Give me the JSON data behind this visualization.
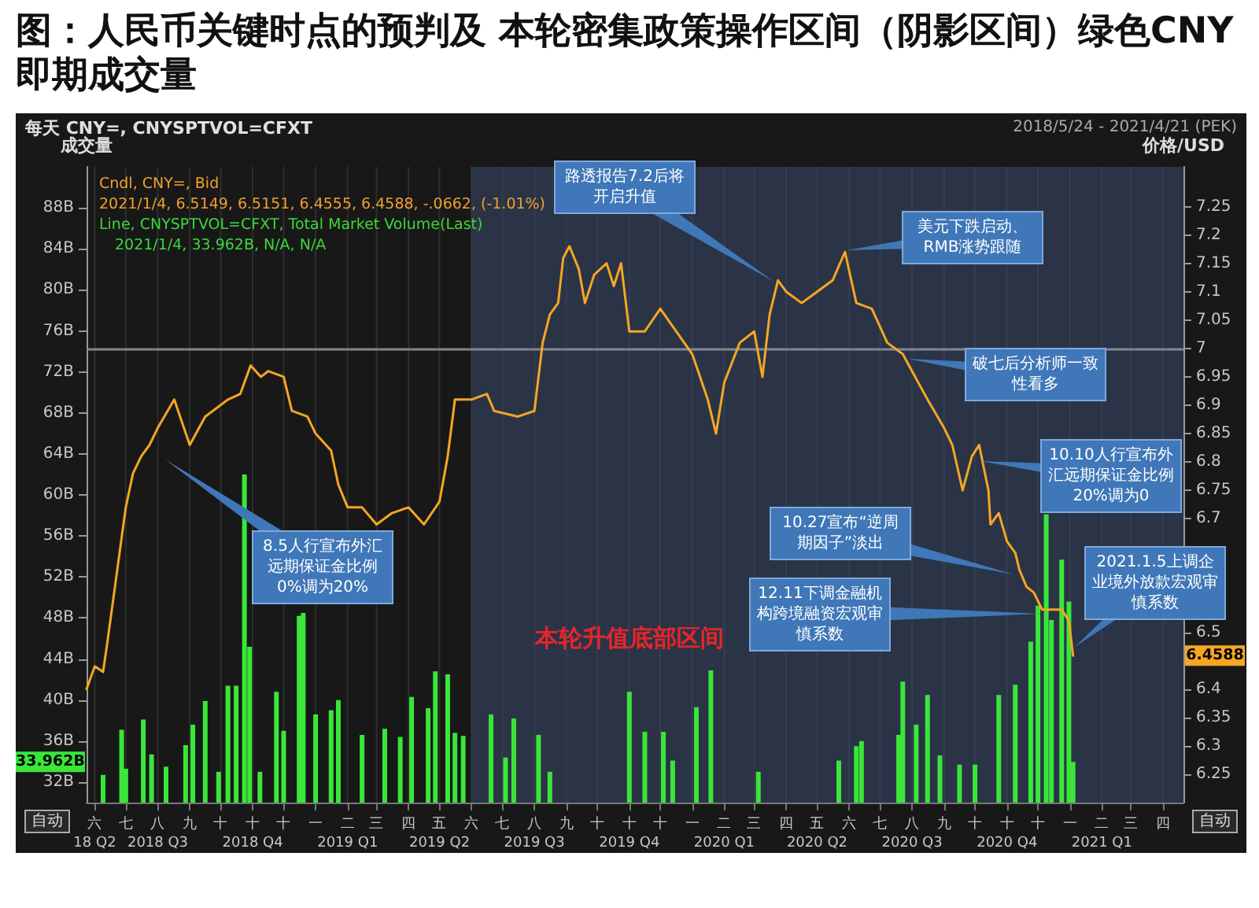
{
  "chart_data": {
    "type": "line",
    "title": "图：人民币关键时点的预判及 本轮密集政策操作区间（阴影区间）绿色CNY即期成交量",
    "ylabel": "成交量",
    "y2label": "价格/USD",
    "grid": "x",
    "marker": "none",
    "line_style": "solid",
    "xlim": [
      "2018-05-24",
      "2021-04-21"
    ],
    "xticks": [
      {
        "value": "2018-06",
        "label": "六\n18 Q2"
      },
      {
        "value": "2018-07",
        "label": "七"
      },
      {
        "value": "2018-08",
        "label": "八\n2018 Q3"
      },
      {
        "value": "2018-09",
        "label": "九"
      },
      {
        "value": "2018-10",
        "label": "十"
      },
      {
        "value": "2018-11",
        "label": "十\n2018 Q4"
      },
      {
        "value": "2018-12",
        "label": "十"
      },
      {
        "value": "2019-01",
        "label": "一"
      },
      {
        "value": "2019-02",
        "label": "二\n2019 Q1"
      },
      {
        "value": "2019-03",
        "label": "三"
      },
      {
        "value": "2019-04",
        "label": "四"
      },
      {
        "value": "2019-05",
        "label": "五\n2019 Q2"
      },
      {
        "value": "2019-06",
        "label": "六"
      },
      {
        "value": "2019-07",
        "label": "七"
      },
      {
        "value": "2019-08",
        "label": "八\n2019 Q3"
      },
      {
        "value": "2019-09",
        "label": "九"
      },
      {
        "value": "2019-10",
        "label": "十"
      },
      {
        "value": "2019-11",
        "label": "十\n2019 Q4"
      },
      {
        "value": "2019-12",
        "label": "十"
      },
      {
        "value": "2020-01",
        "label": "一"
      },
      {
        "value": "2020-02",
        "label": "二\n2020 Q1"
      },
      {
        "value": "2020-03",
        "label": "三"
      },
      {
        "value": "2020-04",
        "label": "四"
      },
      {
        "value": "2020-05",
        "label": "五\n2020 Q2"
      },
      {
        "value": "2020-06",
        "label": "六"
      },
      {
        "value": "2020-07",
        "label": "七"
      },
      {
        "value": "2020-08",
        "label": "八\n2020 Q3"
      },
      {
        "value": "2020-09",
        "label": "九"
      },
      {
        "value": "2020-10",
        "label": "十"
      },
      {
        "value": "2020-11",
        "label": "十\n2020 Q4"
      },
      {
        "value": "2020-12",
        "label": "十"
      },
      {
        "value": "2021-01",
        "label": "一"
      },
      {
        "value": "2021-02",
        "label": "二\n2021 Q1"
      },
      {
        "value": "2021-03",
        "label": "三"
      },
      {
        "value": "2021-04",
        "label": "四"
      }
    ],
    "ylim": [
      30,
      92
    ],
    "yticks": [
      {
        "value": 32,
        "label": "32B"
      },
      {
        "value": 36,
        "label": "36B"
      },
      {
        "value": 40,
        "label": "40B"
      },
      {
        "value": 44,
        "label": "44B"
      },
      {
        "value": 48,
        "label": "48B"
      },
      {
        "value": 52,
        "label": "52B"
      },
      {
        "value": 56,
        "label": "56B"
      },
      {
        "value": 60,
        "label": "60B"
      },
      {
        "value": 64,
        "label": "64B"
      },
      {
        "value": 68,
        "label": "68B"
      },
      {
        "value": 72,
        "label": "72B"
      },
      {
        "value": 76,
        "label": "76B"
      },
      {
        "value": 80,
        "label": "80B"
      },
      {
        "value": 84,
        "label": "84B"
      },
      {
        "value": 88,
        "label": "88B"
      }
    ],
    "y2lim": [
      6.2,
      7.32
    ],
    "y2ticks": [
      6.25,
      6.3,
      6.35,
      6.4,
      6.5,
      6.7,
      6.75,
      6.8,
      6.85,
      6.9,
      6.95,
      7,
      7.05,
      7.1,
      7.15,
      7.2,
      7.25
    ],
    "series": [
      {
        "type": "bar",
        "color": "#39e639",
        "x": [
          "2018-06-09",
          "2018-06-27",
          "2018-07-01",
          "2018-07-18",
          "2018-07-26",
          "2018-08-09",
          "2018-08-28",
          "2018-09-04",
          "2018-09-16",
          "2018-09-29",
          "2018-10-08",
          "2018-10-16",
          "2018-10-24",
          "2018-10-29",
          "2018-11-08",
          "2018-11-24",
          "2018-12-01",
          "2018-12-16",
          "2018-12-20",
          "2019-01-01",
          "2019-01-16",
          "2019-01-23",
          "2019-02-15",
          "2019-03-09",
          "2019-03-24",
          "2019-04-04",
          "2019-04-20",
          "2019-04-27",
          "2019-05-09",
          "2019-05-16",
          "2019-05-24",
          "2019-06-20",
          "2019-07-04",
          "2019-07-12",
          "2019-08-05",
          "2019-08-16",
          "2019-11-01",
          "2019-11-16",
          "2019-12-04",
          "2019-12-13",
          "2020-01-05",
          "2020-01-19",
          "2020-03-05",
          "2020-05-22",
          "2020-06-08",
          "2020-06-13",
          "2020-07-19",
          "2020-07-23",
          "2020-08-05",
          "2020-08-16",
          "2020-08-28",
          "2020-09-16",
          "2020-10-01",
          "2020-10-24",
          "2020-11-09",
          "2020-11-24",
          "2020-12-01",
          "2020-12-09",
          "2020-12-14",
          "2020-12-24",
          "2020-12-31",
          "2021-01-04"
        ],
        "values": [
          32.7,
          37.1,
          33.3,
          38.1,
          34.7,
          33.5,
          35.6,
          37.6,
          39.9,
          33.0,
          41.4,
          41.4,
          62.0,
          45.2,
          33.0,
          40.8,
          37.0,
          48.2,
          48.5,
          38.6,
          39.0,
          40.0,
          36.6,
          37.2,
          36.4,
          40.3,
          39.2,
          42.8,
          42.5,
          36.8,
          36.5,
          38.6,
          34.4,
          38.2,
          36.6,
          33.0,
          40.8,
          36.9,
          36.9,
          34.1,
          39.3,
          42.9,
          33.0,
          34.1,
          35.5,
          36.0,
          36.6,
          41.8,
          37.6,
          40.5,
          34.6,
          33.7,
          33.7,
          40.5,
          41.5,
          45.7,
          49.2,
          58.1,
          47.8,
          53.7,
          49.6,
          33.962
        ]
      },
      {
        "axis": "y2",
        "color": "#f5a623",
        "x": [
          "2018-05-24",
          "2018-06-01",
          "2018-06-09",
          "2018-06-13",
          "2018-06-19",
          "2018-06-25",
          "2018-07-01",
          "2018-07-08",
          "2018-07-16",
          "2018-07-24",
          "2018-08-01",
          "2018-08-17",
          "2018-09-01",
          "2018-09-16",
          "2018-10-08",
          "2018-10-20",
          "2018-10-30",
          "2018-11-09",
          "2018-11-16",
          "2018-12-01",
          "2018-12-09",
          "2018-12-24",
          "2019-01-01",
          "2019-01-16",
          "2019-01-23",
          "2019-02-01",
          "2019-02-15",
          "2019-03-01",
          "2019-03-16",
          "2019-04-01",
          "2019-04-16",
          "2019-05-01",
          "2019-05-09",
          "2019-05-16",
          "2019-06-01",
          "2019-06-16",
          "2019-06-23",
          "2019-07-16",
          "2019-08-01",
          "2019-08-05",
          "2019-08-09",
          "2019-08-16",
          "2019-08-24",
          "2019-08-29",
          "2019-09-04",
          "2019-09-13",
          "2019-09-19",
          "2019-09-28",
          "2019-10-10",
          "2019-10-17",
          "2019-10-24",
          "2019-11-01",
          "2019-11-16",
          "2019-12-01",
          "2020-01-01",
          "2020-01-16",
          "2020-01-24",
          "2020-02-01",
          "2020-02-16",
          "2020-03-01",
          "2020-03-09",
          "2020-03-16",
          "2020-03-24",
          "2020-04-01",
          "2020-04-16",
          "2020-05-01",
          "2020-05-16",
          "2020-05-28",
          "2020-06-08",
          "2020-06-23",
          "2020-07-08",
          "2020-07-23",
          "2020-08-01",
          "2020-08-16",
          "2020-09-01",
          "2020-09-09",
          "2020-09-19",
          "2020-09-28",
          "2020-10-05",
          "2020-10-14",
          "2020-10-16",
          "2020-10-24",
          "2020-11-01",
          "2020-11-09",
          "2020-11-13",
          "2020-11-20",
          "2020-11-27",
          "2020-12-05",
          "2020-12-14",
          "2020-12-24",
          "2020-12-31",
          "2021-01-04"
        ],
        "values": [
          6.4,
          6.44,
          6.43,
          6.48,
          6.56,
          6.64,
          6.72,
          6.78,
          6.81,
          6.83,
          6.86,
          6.91,
          6.83,
          6.88,
          6.91,
          6.92,
          6.97,
          6.95,
          6.96,
          6.95,
          6.89,
          6.88,
          6.85,
          6.82,
          6.76,
          6.72,
          6.72,
          6.69,
          6.71,
          6.72,
          6.69,
          6.73,
          6.81,
          6.91,
          6.91,
          6.92,
          6.89,
          6.88,
          6.89,
          6.95,
          7.01,
          7.06,
          7.08,
          7.16,
          7.18,
          7.14,
          7.08,
          7.13,
          7.15,
          7.11,
          7.15,
          7.03,
          7.03,
          7.07,
          6.99,
          6.91,
          6.85,
          6.94,
          7.01,
          7.03,
          6.95,
          7.06,
          7.12,
          7.1,
          7.08,
          7.1,
          7.12,
          7.17,
          7.08,
          7.07,
          7.01,
          6.99,
          6.96,
          6.91,
          6.86,
          6.83,
          6.75,
          6.81,
          6.83,
          6.75,
          6.69,
          6.71,
          6.66,
          6.64,
          6.61,
          6.58,
          6.57,
          6.54,
          6.54,
          6.54,
          6.52,
          6.4588
        ]
      }
    ],
    "ref_lines": [
      {
        "axis": "y2",
        "value": 7,
        "color": "#7f8791"
      }
    ],
    "bands": [
      {
        "axis": "x",
        "from": "2019-06-01",
        "to": "2021-04-21",
        "label": "本轮升值底部区间",
        "color": "#3a4c6e"
      }
    ],
    "annotations": [
      "每天 CNY=, CNYSPTVOL=CFXT",
      "2018/5/24 - 2021/4/21 (PEK)",
      "Cndl, CNY=, Bid",
      "2021/1/4, 6.5149, 6.5151, 6.4555, 6.4588, -.0662, (-1.01%)",
      "Line, CNYSPTVOL=CFXT, Total Market Volume(Last)",
      "2021/1/4, 33.962B, N/A, N/A",
      "6.4588",
      "33.962B",
      "自动",
      "自动",
      "8.5人行宣布外汇远期保证金比例0%调为20%",
      "路透报告7.2后将开启升值",
      "美元下跌启动、RMB涨势跟随",
      "破七后分析师一致性看多",
      "10.10人行宣布外汇远期保证金比例20%调为0",
      "10.27宣布“逆周期因子”淡出",
      "12.11下调金融机构跨境融资宏观审慎系数",
      "2021.1.5上调企业境外放款宏观审慎系数"
    ]
  }
}
